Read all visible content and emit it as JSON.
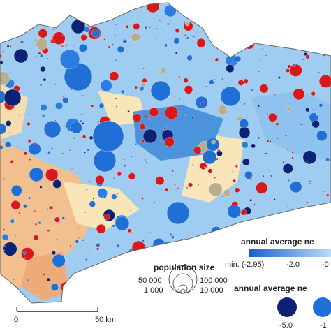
{
  "map": {
    "change_legend": {
      "title": "annual average ne",
      "labels": [
        "min. (-2.95)",
        "-2.0",
        "-0"
      ]
    },
    "population_size": {
      "title": "population size",
      "labels": [
        "50 000",
        "100 000",
        "1 000",
        "10 000"
      ]
    },
    "scale_bar": {
      "labels": [
        "0",
        "50 km"
      ]
    },
    "migration_legend": {
      "title": "annual average ne",
      "labels": [
        "-5.0",
        "-1"
      ]
    }
  }
}
